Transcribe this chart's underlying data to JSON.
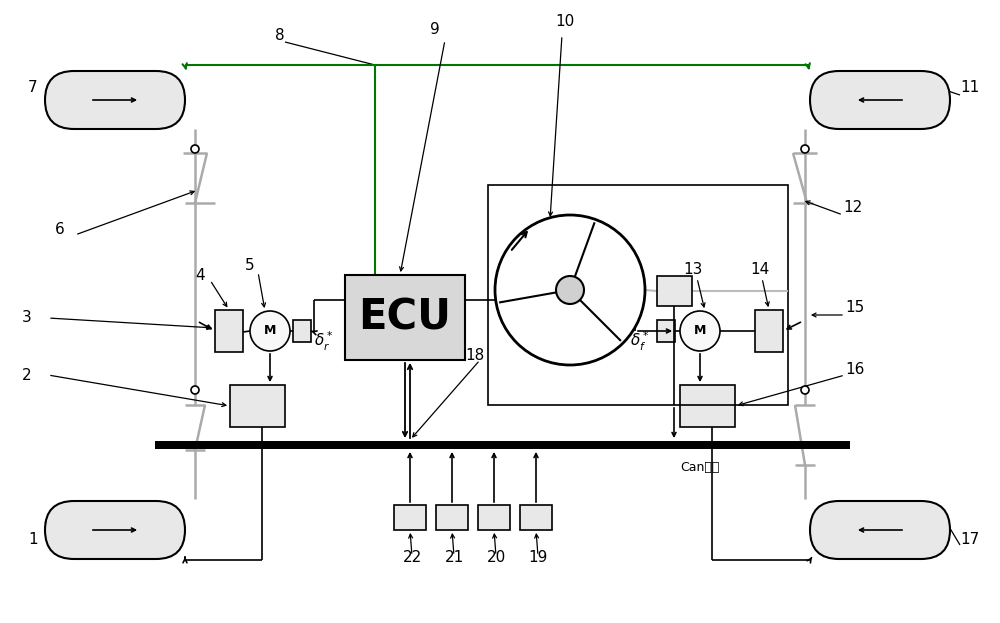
{
  "bg_color": "#ffffff",
  "fig_width": 10.0,
  "fig_height": 6.23,
  "can_label": "Can总线",
  "ecu_label": "ECU",
  "motor_label": "M",
  "green_color": "#007700",
  "line_color": "#000000",
  "gray_fill": "#e8e8e8",
  "dark_gray": "#c0c0c0",
  "wheel_fill": "#e0e0e0",
  "ecu_fill": "#d8d8d8"
}
